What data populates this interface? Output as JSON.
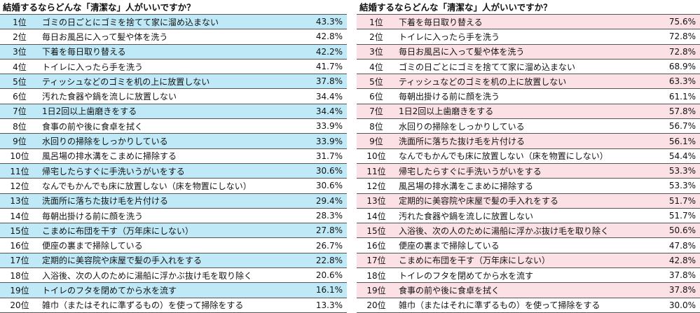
{
  "colors": {
    "left_shade": "#bfe9f7",
    "right_shade": "#fbe1e6",
    "rule": "#555555"
  },
  "left": {
    "title": "結婚するならどんな「清潔な」人がいいですか？",
    "rows": [
      {
        "rank": "1位",
        "item": "ゴミの日ごとにゴミを捨てて家に溜め込まない",
        "pct": "43.3%"
      },
      {
        "rank": "2位",
        "item": "毎日お風呂に入って髪や体を洗う",
        "pct": "42.8%"
      },
      {
        "rank": "3位",
        "item": "下着を毎日取り替える",
        "pct": "42.2%"
      },
      {
        "rank": "4位",
        "item": "トイレに入ったら手を洗う",
        "pct": "41.7%"
      },
      {
        "rank": "5位",
        "item": "ティッシュなどのゴミを机の上に放置しない",
        "pct": "37.8%"
      },
      {
        "rank": "6位",
        "item": "汚れた食器や鍋を流しに放置しない",
        "pct": "34.4%"
      },
      {
        "rank": "7位",
        "item": "1日2回以上歯磨きをする",
        "pct": "34.4%"
      },
      {
        "rank": "8位",
        "item": "食事の前や後に食卓を拭く",
        "pct": "33.9%"
      },
      {
        "rank": "9位",
        "item": "水回りの掃除をしっかりしている",
        "pct": "33.9%"
      },
      {
        "rank": "10位",
        "item": "風呂場の排水溝をこまめに掃除する",
        "pct": "31.7%"
      },
      {
        "rank": "11位",
        "item": "帰宅したらすぐに手洗いうがいをする",
        "pct": "30.6%"
      },
      {
        "rank": "12位",
        "item": "なんでもかんでも床に放置しない（床を物置にしない）",
        "pct": "30.6%"
      },
      {
        "rank": "13位",
        "item": "洗面所に落ちた抜け毛を片付ける",
        "pct": "29.4%"
      },
      {
        "rank": "14位",
        "item": "毎朝出掛ける前に顔を洗う",
        "pct": "28.3%"
      },
      {
        "rank": "15位",
        "item": "こまめに布団を干す（万年床にしない）",
        "pct": "27.8%"
      },
      {
        "rank": "16位",
        "item": "便座の裏まで掃除している",
        "pct": "26.7%"
      },
      {
        "rank": "17位",
        "item": "定期的に美容院や床屋で髪の手入れをする",
        "pct": "22.8%"
      },
      {
        "rank": "18位",
        "item": "入浴後、次の人のために湯船に浮かぶ抜け毛を取り除く",
        "pct": "20.6%"
      },
      {
        "rank": "19位",
        "item": "トイレのフタを閉めてから水を流す",
        "pct": "16.1%"
      },
      {
        "rank": "20位",
        "item": "雑巾（またはそれに準ずるもの）を使って掃除をする",
        "pct": "13.3%"
      }
    ]
  },
  "right": {
    "title": "結婚するならどんな「清潔な」人がいいですか？",
    "rows": [
      {
        "rank": "1位",
        "item": "下着を毎日取り替える",
        "pct": "75.6%"
      },
      {
        "rank": "2位",
        "item": "トイレに入ったら手を洗う",
        "pct": "72.8%"
      },
      {
        "rank": "3位",
        "item": "毎日お風呂に入って髪や体を洗う",
        "pct": "72.8%"
      },
      {
        "rank": "4位",
        "item": "ゴミの日ごとにゴミを捨てて家に溜め込まない",
        "pct": "68.9%"
      },
      {
        "rank": "5位",
        "item": "ティッシュなどのゴミを机の上に放置しない",
        "pct": "63.3%"
      },
      {
        "rank": "6位",
        "item": "毎朝出掛ける前に顔を洗う",
        "pct": "61.1%"
      },
      {
        "rank": "7位",
        "item": "1日2回以上歯磨きをする",
        "pct": "57.8%"
      },
      {
        "rank": "8位",
        "item": "水回りの掃除をしっかりしている",
        "pct": "56.7%"
      },
      {
        "rank": "9位",
        "item": "洗面所に落ちた抜け毛を片付ける",
        "pct": "56.1%"
      },
      {
        "rank": "10位",
        "item": "なんでもかんでも床に放置しない（床を物置にしない）",
        "pct": "54.4%"
      },
      {
        "rank": "11位",
        "item": "帰宅したらすぐに手洗いうがいをする",
        "pct": "53.3%"
      },
      {
        "rank": "12位",
        "item": "風呂場の排水溝をこまめに掃除する",
        "pct": "53.3%"
      },
      {
        "rank": "13位",
        "item": "定期的に美容院や床屋で髪の手入れをする",
        "pct": "51.7%"
      },
      {
        "rank": "14位",
        "item": "汚れた食器や鍋を流しに放置しない",
        "pct": "51.7%"
      },
      {
        "rank": "15位",
        "item": "入浴後、次の人のために湯船に浮かぶ抜け毛を取り除く",
        "pct": "50.6%"
      },
      {
        "rank": "16位",
        "item": "便座の裏まで掃除している",
        "pct": "47.8%"
      },
      {
        "rank": "17位",
        "item": "こまめに布団を干す（万年床にしない）",
        "pct": "42.8%"
      },
      {
        "rank": "18位",
        "item": "トイレのフタを閉めてから水を流す",
        "pct": "37.8%"
      },
      {
        "rank": "19位",
        "item": "食事の前や後に食卓を拭く",
        "pct": "37.8%"
      },
      {
        "rank": "20位",
        "item": "雑巾（またはそれに準ずるもの）を使って掃除をする",
        "pct": "30.0%"
      }
    ]
  }
}
